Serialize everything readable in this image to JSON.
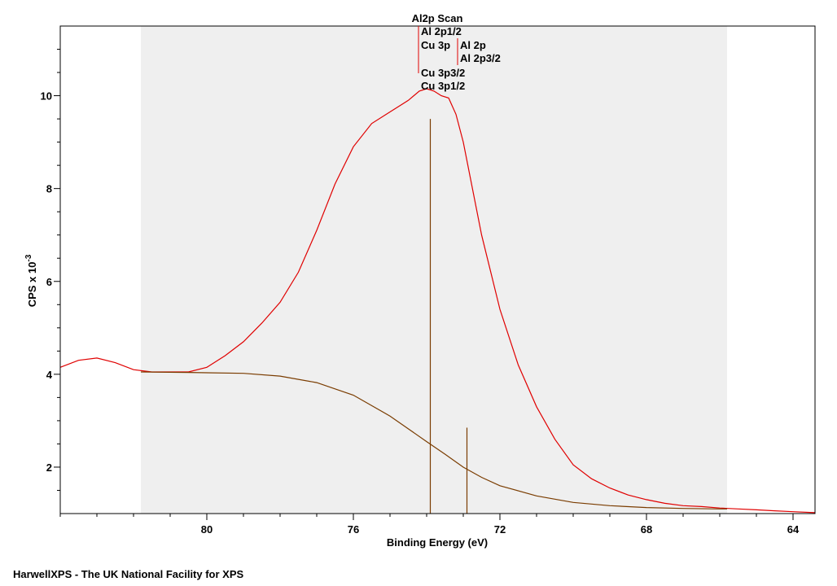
{
  "chart_data": {
    "type": "line",
    "title": "Al2p Scan",
    "xlabel": "Binding Energy (eV)",
    "ylabel_main": "CPS x 10",
    "ylabel_exp": "-3",
    "xlim": [
      84,
      63.4
    ],
    "ylim": [
      1.0,
      11.5
    ],
    "x_ticks": [
      "80",
      "76",
      "72",
      "68",
      "64"
    ],
    "x_tick_values": [
      80,
      76,
      72,
      68,
      64
    ],
    "y_ticks": [
      "2",
      "4",
      "6",
      "8",
      "10"
    ],
    "y_tick_values": [
      2,
      4,
      6,
      8,
      10
    ],
    "region": [
      81.8,
      65.8
    ],
    "series": [
      {
        "name": "spectrum",
        "color": "#e00000",
        "x": [
          84.0,
          83.5,
          83.0,
          82.5,
          82.0,
          81.5,
          81.0,
          80.5,
          80.0,
          79.5,
          79.0,
          78.5,
          78.0,
          77.5,
          77.0,
          76.5,
          76.0,
          75.5,
          75.0,
          74.5,
          74.2,
          74.0,
          73.8,
          73.6,
          73.4,
          73.2,
          73.0,
          72.8,
          72.5,
          72.0,
          71.5,
          71.0,
          70.5,
          70.0,
          69.5,
          69.0,
          68.5,
          68.0,
          67.5,
          67.0,
          66.5,
          66.0,
          65.5,
          65.0,
          64.5,
          64.0,
          63.4
        ],
        "y": [
          4.15,
          4.3,
          4.35,
          4.25,
          4.1,
          4.05,
          4.05,
          4.05,
          4.15,
          4.4,
          4.7,
          5.1,
          5.55,
          6.2,
          7.1,
          8.1,
          8.9,
          9.4,
          9.65,
          9.9,
          10.1,
          10.15,
          10.1,
          10.0,
          9.95,
          9.6,
          9.0,
          8.2,
          7.0,
          5.4,
          4.2,
          3.3,
          2.6,
          2.05,
          1.75,
          1.55,
          1.4,
          1.3,
          1.22,
          1.17,
          1.15,
          1.12,
          1.1,
          1.08,
          1.06,
          1.04,
          1.02
        ]
      },
      {
        "name": "background",
        "color": "#7a3c00",
        "x": [
          81.8,
          80.5,
          79.0,
          78.0,
          77.0,
          76.0,
          75.0,
          74.0,
          73.5,
          73.0,
          72.5,
          72.0,
          71.0,
          70.0,
          69.0,
          68.0,
          67.0,
          66.0,
          65.8
        ],
        "y": [
          4.05,
          4.04,
          4.02,
          3.96,
          3.82,
          3.55,
          3.1,
          2.55,
          2.28,
          2.0,
          1.78,
          1.6,
          1.38,
          1.24,
          1.17,
          1.13,
          1.11,
          1.1,
          1.1
        ]
      }
    ],
    "peak_markers": [
      {
        "name": "Al 2p1/2",
        "x": 73.9,
        "height": 9.5
      },
      {
        "name": "Al 2p3/2",
        "x": 72.9,
        "height": 2.85
      }
    ],
    "peak_labels": {
      "al2p12": "Al 2p1/2",
      "cu3p": "Cu 3p",
      "al2p": "Al 2p",
      "al2p32": "Al 2p3/2",
      "cu3p32": "Cu 3p3/2",
      "cu3p12": "Cu 3p1/2"
    },
    "colors": {
      "spectrum": "#e00000",
      "background": "#7a3c00",
      "marker": "#7a3c00",
      "region_fill": "#efefef",
      "label_line": "#e00000"
    }
  },
  "footer": "HarwellXPS - The UK National Facility for XPS"
}
